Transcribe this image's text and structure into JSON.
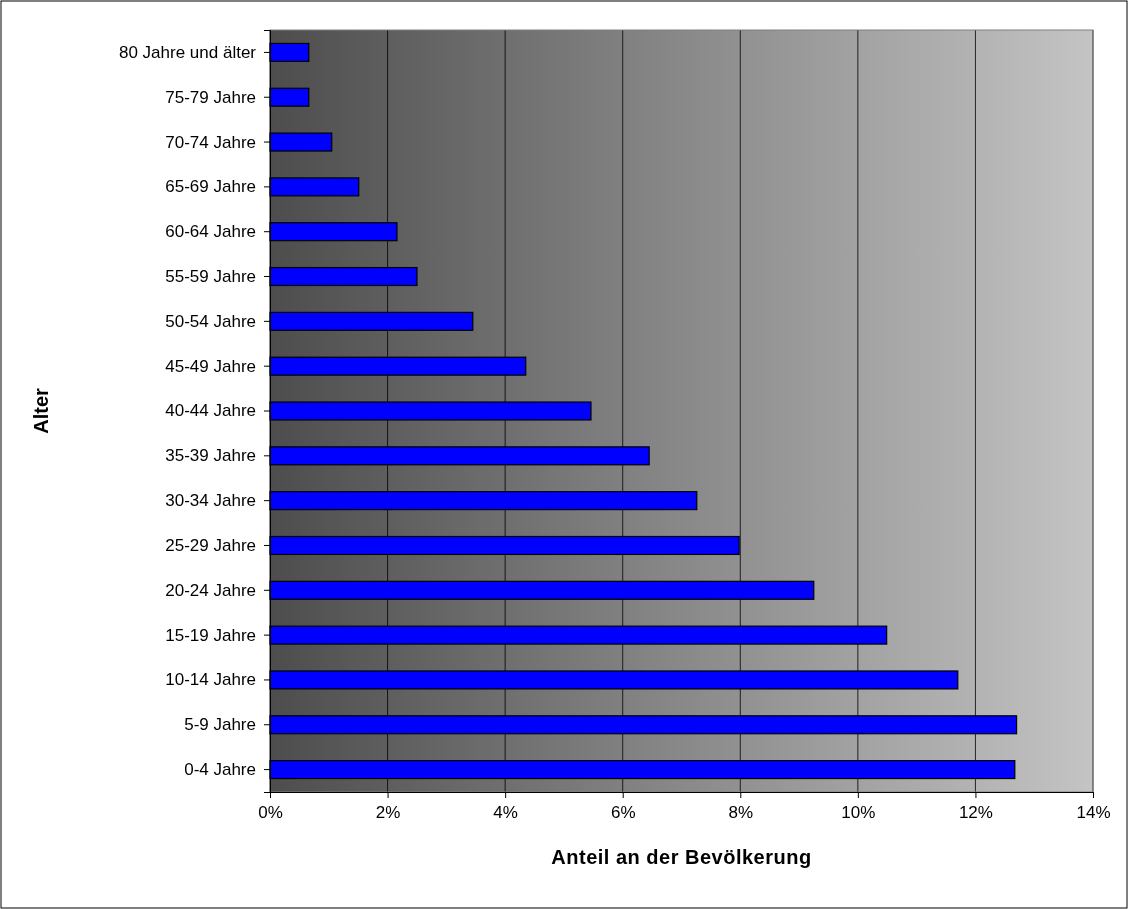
{
  "chart_data": {
    "type": "bar",
    "orientation": "horizontal",
    "xlabel": "Anteil an der Bevölkerung",
    "ylabel": "Alter",
    "categories": [
      "80 Jahre und älter",
      "75-79 Jahre",
      "70-74 Jahre",
      "65-69 Jahre",
      "60-64 Jahre",
      "55-59 Jahre",
      "50-54 Jahre",
      "45-49 Jahre",
      "40-44 Jahre",
      "35-39 Jahre",
      "30-34 Jahre",
      "25-29 Jahre",
      "20-24 Jahre",
      "15-19 Jahre",
      "10-14 Jahre",
      "5-9 Jahre",
      "0-4 Jahre"
    ],
    "values": [
      0.66,
      0.66,
      1.05,
      1.51,
      2.16,
      2.5,
      3.45,
      4.35,
      5.46,
      6.45,
      7.26,
      7.98,
      9.25,
      10.49,
      11.7,
      12.7,
      12.67
    ],
    "color": "#0000ff",
    "xlim": [
      0,
      14
    ],
    "xticks": [
      {
        "value": 0,
        "label": "0%"
      },
      {
        "value": 2,
        "label": "2%"
      },
      {
        "value": 4,
        "label": "4%"
      },
      {
        "value": 6,
        "label": "6%"
      },
      {
        "value": 8,
        "label": "8%"
      },
      {
        "value": 10,
        "label": "10%"
      },
      {
        "value": 12,
        "label": "12%"
      },
      {
        "value": 14,
        "label": "14%"
      }
    ],
    "grid": "x"
  }
}
